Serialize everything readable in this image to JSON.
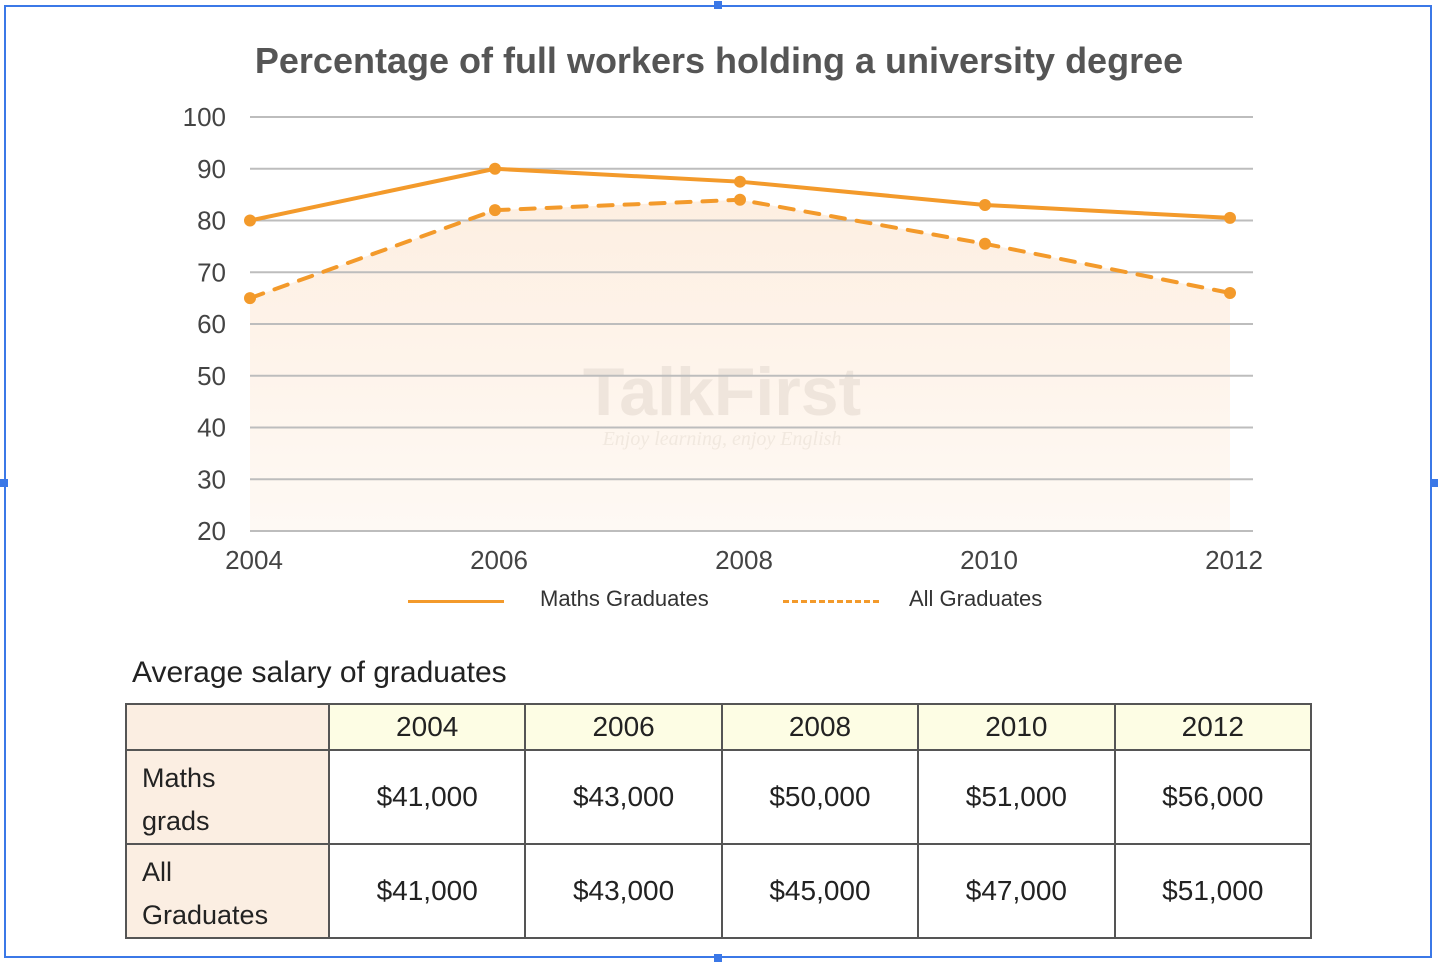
{
  "colors": {
    "series": "#f39a2b",
    "grid": "#bdbdbd",
    "frame": "#3b78e7",
    "area": "#fdeee0",
    "row_header": "#fbeee2",
    "col_header": "#fdfde4"
  },
  "watermark": {
    "name": "TalkFirst",
    "tagline": "Enjoy learning, enjoy English"
  },
  "chart_data": {
    "type": "line",
    "title": "Percentage of full workers holding a university degree",
    "xlabel": "",
    "ylabel": "",
    "x": [
      "2004",
      "2006",
      "2008",
      "2010",
      "2012"
    ],
    "yticks": [
      "100",
      "90",
      "80",
      "70",
      "60",
      "50",
      "40",
      "30",
      "20"
    ],
    "ylim": [
      20,
      100
    ],
    "grid": true,
    "legend_position": "bottom",
    "series": [
      {
        "name": "Maths Graduates",
        "style": "solid",
        "values": [
          80,
          90,
          87.5,
          83,
          80.5
        ]
      },
      {
        "name": "All Graduates",
        "style": "dashed",
        "values": [
          65,
          82,
          84,
          75.5,
          66
        ]
      }
    ]
  },
  "table": {
    "title": "Average salary of graduates",
    "columns": [
      "2004",
      "2006",
      "2008",
      "2010",
      "2012"
    ],
    "rows": [
      {
        "label_line1": "Maths",
        "label_line2": "grads",
        "values": [
          "$41,000",
          "$43,000",
          "$50,000",
          "$51,000",
          "$56,000"
        ]
      },
      {
        "label_line1": "All",
        "label_line2": "Graduates",
        "values": [
          "$41,000",
          "$43,000",
          "$45,000",
          "$47,000",
          "$51,000"
        ]
      }
    ]
  }
}
